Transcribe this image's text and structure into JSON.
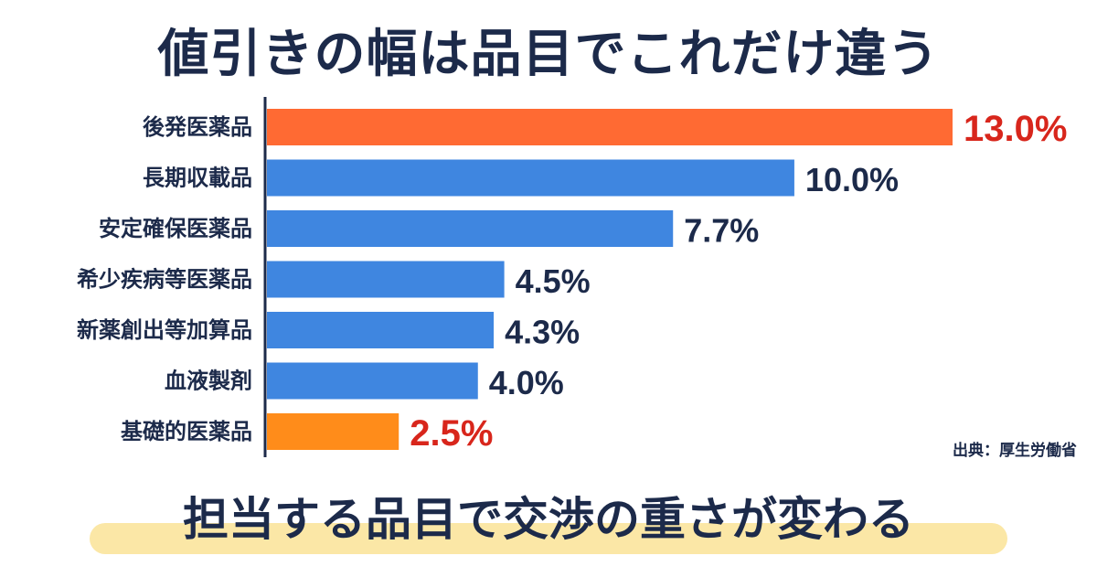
{
  "title": "値引きの幅は品目でこれだけ違う",
  "subtitle": "担当する品目で交渉の重さが変わる",
  "source": "出典：厚生労働省",
  "colors": {
    "highlight_bar": "#ff6a33",
    "normal_bar": "#3f86e0",
    "low_bar": "#ff8c1a",
    "highlight_label": "#d8261c",
    "normal_label": "#1c2a4a"
  },
  "chart_data": {
    "type": "bar",
    "orientation": "horizontal",
    "title": "値引きの幅は品目でこれだけ違う",
    "categories": [
      "後発医薬品",
      "長期収載品",
      "安定確保医薬品",
      "希少疾病等医薬品",
      "新薬創出等加算品",
      "血液製剤",
      "基礎的医薬品"
    ],
    "values": [
      13.0,
      10.0,
      7.7,
      4.5,
      4.3,
      4.0,
      2.5
    ],
    "value_labels": [
      "13.0%",
      "10.0%",
      "7.7%",
      "4.5%",
      "4.3%",
      "4.0%",
      "2.5%"
    ],
    "bar_colors": [
      "#ff6a33",
      "#3f86e0",
      "#3f86e0",
      "#3f86e0",
      "#3f86e0",
      "#3f86e0",
      "#ff8c1a"
    ],
    "label_colors": [
      "#d8261c",
      "#1c2a4a",
      "#1c2a4a",
      "#1c2a4a",
      "#1c2a4a",
      "#1c2a4a",
      "#d8261c"
    ],
    "highlighted": [
      true,
      false,
      false,
      false,
      false,
      false,
      true
    ],
    "xlim": [
      0,
      13.0
    ],
    "grid": false,
    "xlabel": "",
    "ylabel": ""
  }
}
